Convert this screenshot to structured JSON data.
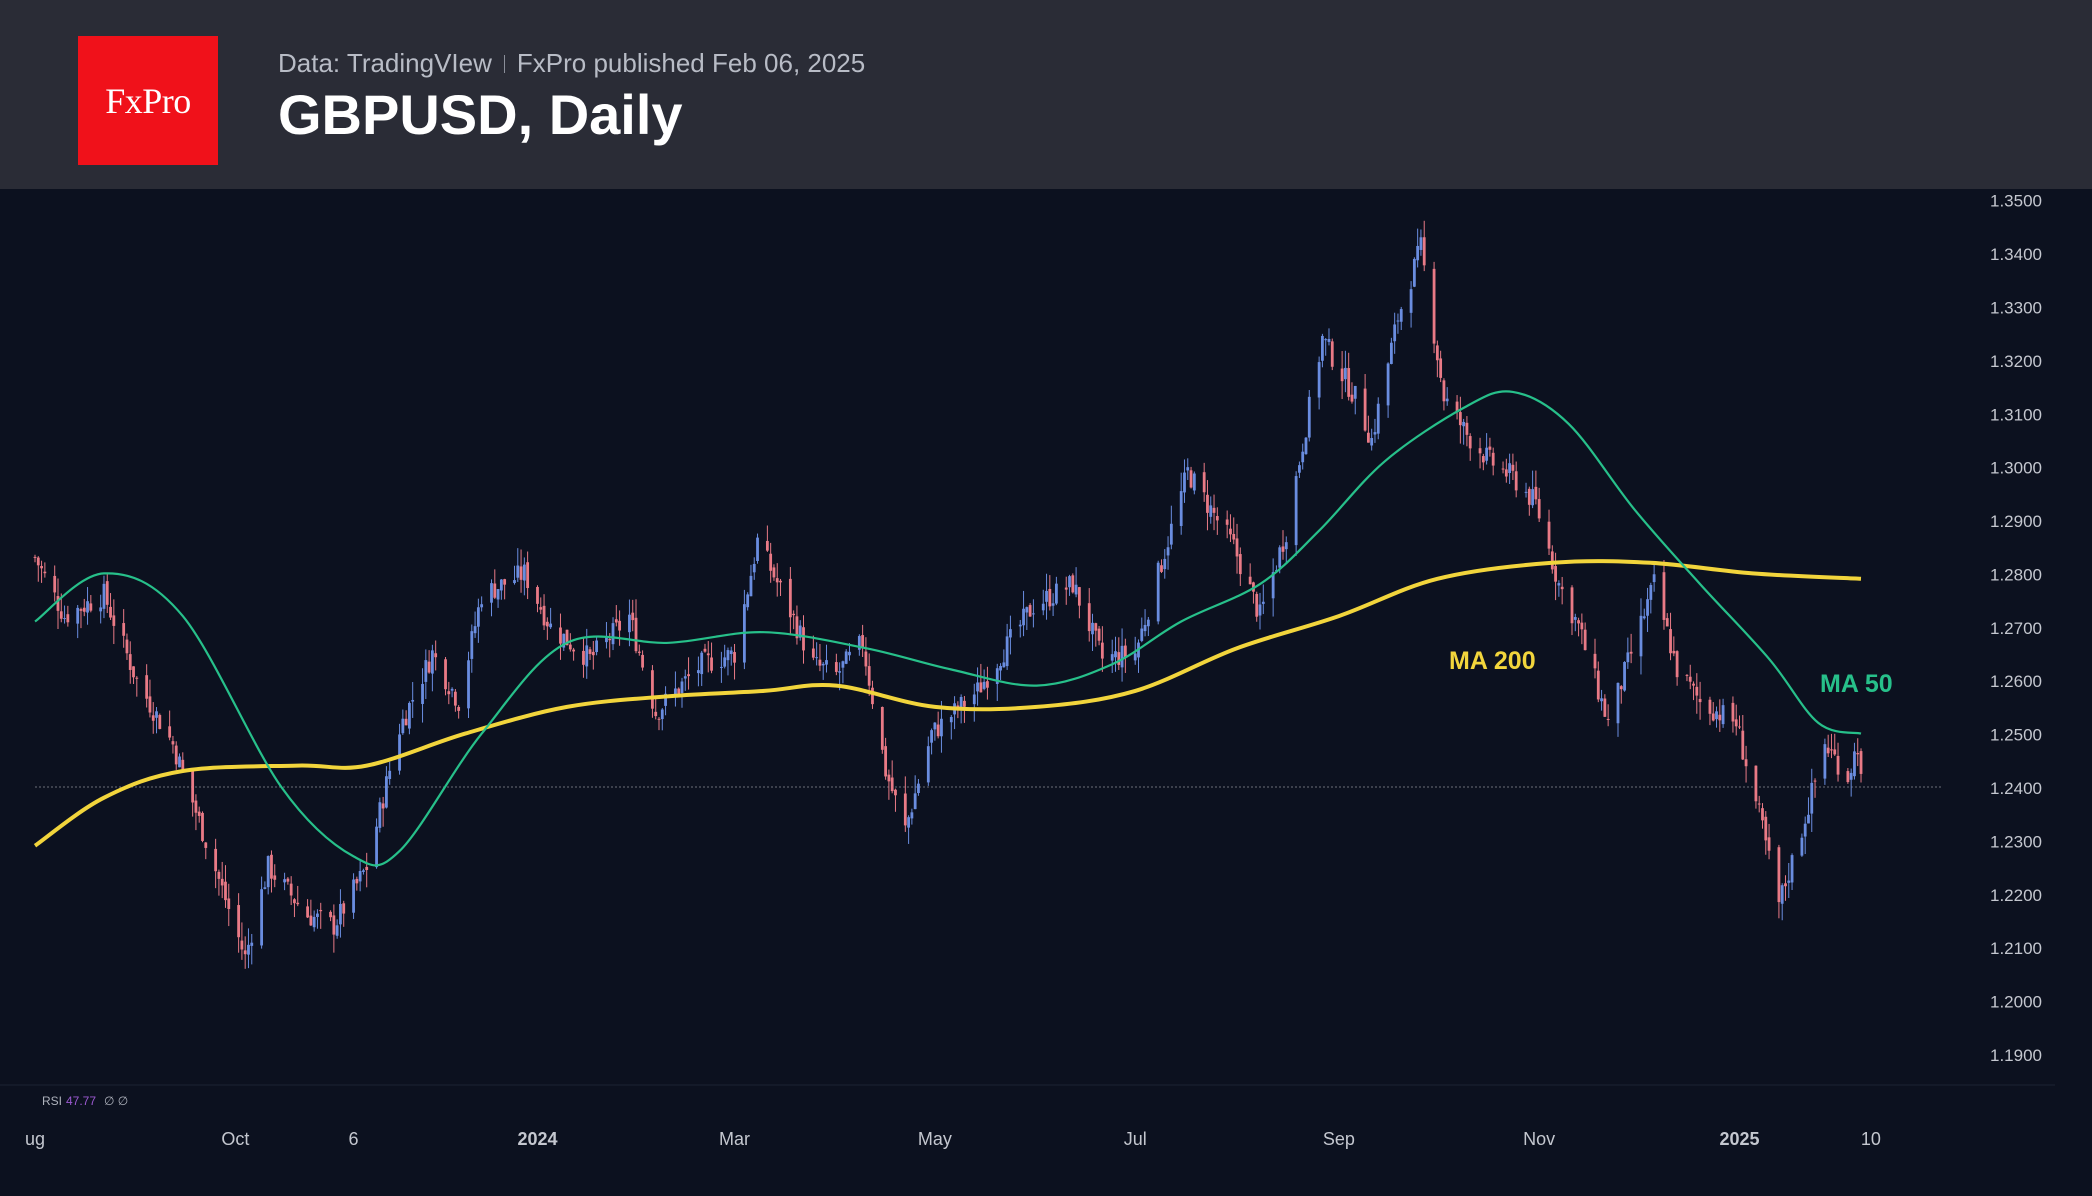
{
  "header": {
    "logo": "FxPro",
    "source": "Data: TradingVIew",
    "published": "FxPro published Feb 06, 2025",
    "title": "GBPUSD, Daily"
  },
  "colors": {
    "up": "#6a8de0",
    "down": "#e97a86",
    "ma50": "#27c08a",
    "ma200": "#f2d53c",
    "axis_text": "#c4c7cf",
    "background": "#0c111f",
    "header": "#2a2c36",
    "logo_bg": "#f0111a"
  },
  "chart_data": {
    "type": "line",
    "title": "GBPUSD, Daily",
    "xlabel": "",
    "ylabel": "",
    "ylim": [
      1.184,
      1.352
    ],
    "y_ticks": [
      "1.1900",
      "1.2000",
      "1.2100",
      "1.2200",
      "1.2300",
      "1.2400",
      "1.2500",
      "1.2600",
      "1.2700",
      "1.2800",
      "1.2900",
      "1.3000",
      "1.3100",
      "1.3200",
      "1.3300",
      "1.3400",
      "1.3500"
    ],
    "x_range": [
      "2023-08-01",
      "2025-02-21"
    ],
    "x_ticks": [
      {
        "label": "ug",
        "date": "2023-08-01",
        "bold": false
      },
      {
        "label": "Oct",
        "date": "2023-10-01",
        "bold": false
      },
      {
        "label": "6",
        "date": "2023-11-06",
        "bold": false
      },
      {
        "label": "2024",
        "date": "2024-01-01",
        "bold": true
      },
      {
        "label": "Mar",
        "date": "2024-03-01",
        "bold": false
      },
      {
        "label": "May",
        "date": "2024-05-01",
        "bold": false
      },
      {
        "label": "Jul",
        "date": "2024-07-01",
        "bold": false
      },
      {
        "label": "Sep",
        "date": "2024-09-01",
        "bold": false
      },
      {
        "label": "Nov",
        "date": "2024-11-01",
        "bold": false
      },
      {
        "label": "2025",
        "date": "2025-01-01",
        "bold": true
      },
      {
        "label": "10",
        "date": "2025-02-10",
        "bold": false
      }
    ],
    "price_line": 1.24,
    "series": [
      {
        "name": "GBPUSD",
        "style": "candles",
        "close_keypoints": [
          {
            "x": "2023-08-01",
            "y": 1.283
          },
          {
            "x": "2023-08-10",
            "y": 1.272
          },
          {
            "x": "2023-08-22",
            "y": 1.276
          },
          {
            "x": "2023-09-01",
            "y": 1.26
          },
          {
            "x": "2023-09-12",
            "y": 1.248
          },
          {
            "x": "2023-09-22",
            "y": 1.23
          },
          {
            "x": "2023-10-04",
            "y": 1.208
          },
          {
            "x": "2023-10-11",
            "y": 1.225
          },
          {
            "x": "2023-10-23",
            "y": 1.216
          },
          {
            "x": "2023-10-31",
            "y": 1.214
          },
          {
            "x": "2023-11-10",
            "y": 1.225
          },
          {
            "x": "2023-11-20",
            "y": 1.251
          },
          {
            "x": "2023-11-30",
            "y": 1.265
          },
          {
            "x": "2023-12-08",
            "y": 1.256
          },
          {
            "x": "2023-12-15",
            "y": 1.276
          },
          {
            "x": "2023-12-28",
            "y": 1.28
          },
          {
            "x": "2024-01-05",
            "y": 1.27
          },
          {
            "x": "2024-01-17",
            "y": 1.264
          },
          {
            "x": "2024-01-29",
            "y": 1.272
          },
          {
            "x": "2024-02-06",
            "y": 1.254
          },
          {
            "x": "2024-02-20",
            "y": 1.263
          },
          {
            "x": "2024-03-01",
            "y": 1.265
          },
          {
            "x": "2024-03-08",
            "y": 1.286
          },
          {
            "x": "2024-03-15",
            "y": 1.277
          },
          {
            "x": "2024-03-25",
            "y": 1.263
          },
          {
            "x": "2024-04-01",
            "y": 1.261
          },
          {
            "x": "2024-04-09",
            "y": 1.267
          },
          {
            "x": "2024-04-16",
            "y": 1.243
          },
          {
            "x": "2024-04-22",
            "y": 1.232
          },
          {
            "x": "2024-04-30",
            "y": 1.25
          },
          {
            "x": "2024-05-14",
            "y": 1.258
          },
          {
            "x": "2024-05-31",
            "y": 1.274
          },
          {
            "x": "2024-06-12",
            "y": 1.278
          },
          {
            "x": "2024-06-21",
            "y": 1.264
          },
          {
            "x": "2024-07-01",
            "y": 1.265
          },
          {
            "x": "2024-07-17",
            "y": 1.299
          },
          {
            "x": "2024-07-31",
            "y": 1.285
          },
          {
            "x": "2024-08-08",
            "y": 1.272
          },
          {
            "x": "2024-08-16",
            "y": 1.288
          },
          {
            "x": "2024-08-27",
            "y": 1.324
          },
          {
            "x": "2024-09-06",
            "y": 1.313
          },
          {
            "x": "2024-09-11",
            "y": 1.305
          },
          {
            "x": "2024-09-19",
            "y": 1.328
          },
          {
            "x": "2024-09-26",
            "y": 1.341
          },
          {
            "x": "2024-10-03",
            "y": 1.313
          },
          {
            "x": "2024-10-10",
            "y": 1.306
          },
          {
            "x": "2024-10-17",
            "y": 1.301
          },
          {
            "x": "2024-10-24",
            "y": 1.298
          },
          {
            "x": "2024-10-31",
            "y": 1.293
          },
          {
            "x": "2024-11-07",
            "y": 1.278
          },
          {
            "x": "2024-11-13",
            "y": 1.27
          },
          {
            "x": "2024-11-22",
            "y": 1.252
          },
          {
            "x": "2024-12-06",
            "y": 1.278
          },
          {
            "x": "2024-12-13",
            "y": 1.262
          },
          {
            "x": "2024-12-20",
            "y": 1.256
          },
          {
            "x": "2024-12-31",
            "y": 1.252
          },
          {
            "x": "2025-01-08",
            "y": 1.232
          },
          {
            "x": "2025-01-13",
            "y": 1.218
          },
          {
            "x": "2025-01-20",
            "y": 1.232
          },
          {
            "x": "2025-01-27",
            "y": 1.248
          },
          {
            "x": "2025-02-03",
            "y": 1.242
          },
          {
            "x": "2025-02-06",
            "y": 1.248
          },
          {
            "x": "2025-02-07",
            "y": 1.241
          }
        ]
      },
      {
        "name": "MA 50",
        "style": "line",
        "points": [
          {
            "x": "2023-08-01",
            "y": 1.271
          },
          {
            "x": "2023-08-22",
            "y": 1.28
          },
          {
            "x": "2023-09-15",
            "y": 1.272
          },
          {
            "x": "2023-10-15",
            "y": 1.24
          },
          {
            "x": "2023-11-06",
            "y": 1.227
          },
          {
            "x": "2023-11-20",
            "y": 1.228
          },
          {
            "x": "2023-12-15",
            "y": 1.25
          },
          {
            "x": "2024-01-10",
            "y": 1.267
          },
          {
            "x": "2024-02-10",
            "y": 1.267
          },
          {
            "x": "2024-03-10",
            "y": 1.269
          },
          {
            "x": "2024-04-10",
            "y": 1.266
          },
          {
            "x": "2024-05-06",
            "y": 1.262
          },
          {
            "x": "2024-06-01",
            "y": 1.259
          },
          {
            "x": "2024-06-24",
            "y": 1.263
          },
          {
            "x": "2024-07-15",
            "y": 1.271
          },
          {
            "x": "2024-08-08",
            "y": 1.278
          },
          {
            "x": "2024-08-26",
            "y": 1.288
          },
          {
            "x": "2024-09-15",
            "y": 1.301
          },
          {
            "x": "2024-10-09",
            "y": 1.311
          },
          {
            "x": "2024-10-24",
            "y": 1.314
          },
          {
            "x": "2024-11-10",
            "y": 1.308
          },
          {
            "x": "2024-11-30",
            "y": 1.292
          },
          {
            "x": "2024-12-20",
            "y": 1.278
          },
          {
            "x": "2025-01-10",
            "y": 1.264
          },
          {
            "x": "2025-01-25",
            "y": 1.252
          },
          {
            "x": "2025-02-07",
            "y": 1.25
          }
        ]
      },
      {
        "name": "MA 200",
        "style": "line",
        "points": [
          {
            "x": "2023-08-01",
            "y": 1.229
          },
          {
            "x": "2023-08-22",
            "y": 1.238
          },
          {
            "x": "2023-09-15",
            "y": 1.243
          },
          {
            "x": "2023-10-20",
            "y": 1.244
          },
          {
            "x": "2023-11-10",
            "y": 1.244
          },
          {
            "x": "2023-12-10",
            "y": 1.25
          },
          {
            "x": "2024-01-10",
            "y": 1.255
          },
          {
            "x": "2024-02-10",
            "y": 1.257
          },
          {
            "x": "2024-03-10",
            "y": 1.258
          },
          {
            "x": "2024-04-01",
            "y": 1.259
          },
          {
            "x": "2024-05-01",
            "y": 1.255
          },
          {
            "x": "2024-06-01",
            "y": 1.255
          },
          {
            "x": "2024-07-01",
            "y": 1.258
          },
          {
            "x": "2024-08-01",
            "y": 1.266
          },
          {
            "x": "2024-09-01",
            "y": 1.272
          },
          {
            "x": "2024-10-01",
            "y": 1.279
          },
          {
            "x": "2024-11-05",
            "y": 1.282
          },
          {
            "x": "2024-12-05",
            "y": 1.282
          },
          {
            "x": "2025-01-05",
            "y": 1.28
          },
          {
            "x": "2025-02-07",
            "y": 1.279
          }
        ]
      }
    ],
    "annotations": [
      {
        "text": "MA 200",
        "color": "#f2d53c"
      },
      {
        "text": "MA 50",
        "color": "#27c08a"
      }
    ],
    "indicator": {
      "label": "RSI",
      "value": "47.77",
      "extra": "∅ ∅"
    }
  }
}
